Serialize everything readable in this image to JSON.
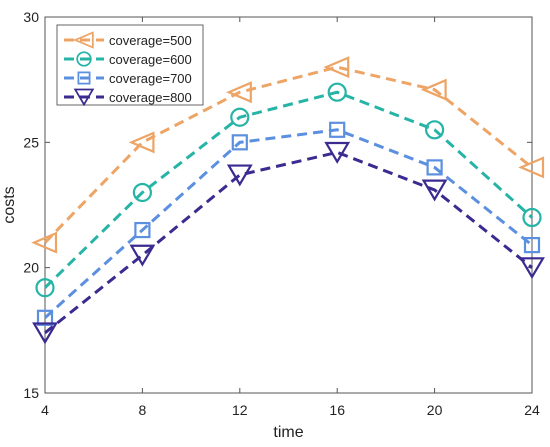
{
  "chart_data": {
    "type": "line",
    "xlabel": "time",
    "ylabel": "costs",
    "x": [
      4,
      8,
      12,
      16,
      20,
      24
    ],
    "xlim": [
      4,
      24
    ],
    "ylim": [
      15,
      30
    ],
    "xticks": [
      "4",
      "8",
      "12",
      "16",
      "20",
      "24"
    ],
    "yticks": [
      "15",
      "20",
      "25",
      "30"
    ],
    "grid": false,
    "legend_position": "top-left",
    "series": [
      {
        "name": "coverage=500",
        "values": [
          21.0,
          25.0,
          27.0,
          28.0,
          27.1,
          24.0
        ],
        "color": "#EDA465",
        "marker": "triangle-left"
      },
      {
        "name": "coverage=600",
        "values": [
          19.2,
          23.0,
          26.0,
          27.0,
          25.5,
          22.0
        ],
        "color": "#26B4A6",
        "marker": "circle"
      },
      {
        "name": "coverage=700",
        "values": [
          18.0,
          21.5,
          25.0,
          25.5,
          24.0,
          20.9
        ],
        "color": "#5B8FE0",
        "marker": "square"
      },
      {
        "name": "coverage=800",
        "values": [
          17.4,
          20.5,
          23.7,
          24.6,
          23.1,
          20.0
        ],
        "color": "#3B2A8F",
        "marker": "triangle-down"
      }
    ]
  }
}
